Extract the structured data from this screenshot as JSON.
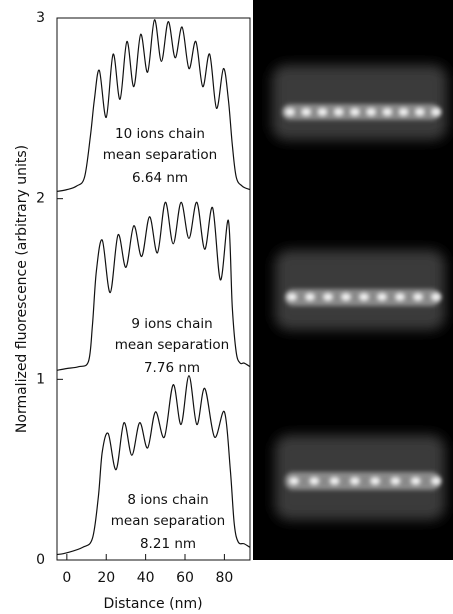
{
  "chart_data": {
    "type": "line",
    "xlabel": "Distance (nm)",
    "ylabel": "Normalized fluorescence (arbitrary units)",
    "xlim": [
      -5,
      93
    ],
    "xticks": [
      0,
      20,
      40,
      60,
      80
    ],
    "ylim": [
      0,
      3
    ],
    "yticks": [
      0,
      1,
      2,
      3
    ],
    "color": "#111111",
    "annotations": [
      "10 ions chain",
      "mean separation",
      "6.64 nm",
      "9 ions chain",
      "mean separation",
      "7.76 nm",
      "8 ions chain",
      "mean separation",
      "8.21 nm"
    ],
    "series": [
      {
        "x": [
          -5,
          0,
          5,
          9,
          12,
          14,
          16.5,
          20,
          23.5,
          27,
          30.5,
          34,
          37.5,
          41,
          44.5,
          48,
          51.5,
          55,
          58.5,
          62,
          65.5,
          69,
          72.5,
          76,
          79.5,
          82,
          84,
          86,
          89,
          93
        ],
        "values": [
          2.04,
          2.05,
          2.07,
          2.12,
          2.35,
          2.55,
          2.71,
          2.45,
          2.8,
          2.55,
          2.87,
          2.62,
          2.91,
          2.7,
          2.99,
          2.76,
          2.98,
          2.78,
          2.95,
          2.72,
          2.87,
          2.62,
          2.8,
          2.5,
          2.72,
          2.55,
          2.3,
          2.12,
          2.07,
          2.05
        ]
      },
      {
        "x": [
          -5,
          0,
          6,
          11,
          13,
          15,
          18,
          22,
          26,
          30,
          34,
          38,
          42,
          46,
          50,
          54,
          58,
          62,
          66,
          70,
          74,
          78,
          82,
          84,
          86,
          88,
          90,
          93
        ],
        "values": [
          1.05,
          1.06,
          1.07,
          1.1,
          1.3,
          1.6,
          1.77,
          1.48,
          1.8,
          1.62,
          1.85,
          1.68,
          1.9,
          1.7,
          1.98,
          1.75,
          1.98,
          1.78,
          1.98,
          1.72,
          1.95,
          1.55,
          1.88,
          1.4,
          1.15,
          1.09,
          1.09,
          1.07
        ]
      },
      {
        "x": [
          -5,
          0,
          8,
          13,
          16,
          18,
          21,
          25,
          29,
          33,
          37,
          41,
          45,
          49.5,
          54,
          58,
          62,
          66,
          70,
          75,
          80,
          83,
          85,
          87,
          90,
          93
        ],
        "values": [
          0.03,
          0.04,
          0.07,
          0.12,
          0.35,
          0.6,
          0.7,
          0.5,
          0.76,
          0.58,
          0.76,
          0.62,
          0.82,
          0.68,
          0.97,
          0.75,
          1.02,
          0.75,
          0.95,
          0.68,
          0.82,
          0.5,
          0.2,
          0.1,
          0.09,
          0.07
        ]
      }
    ]
  }
}
